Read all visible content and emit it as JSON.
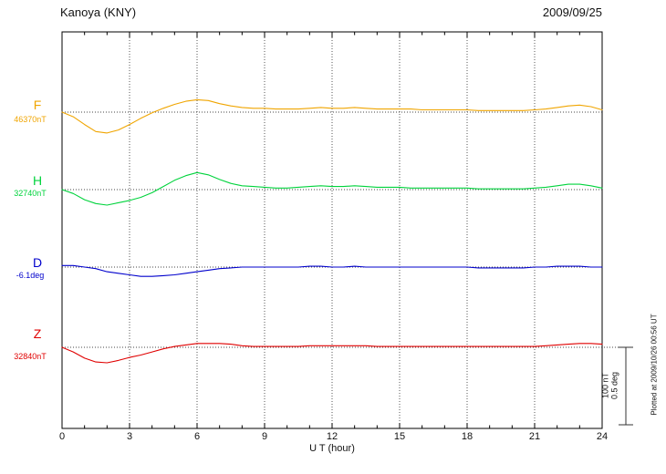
{
  "header": {
    "title": "Kanoya (KNY)",
    "date": "2009/09/25"
  },
  "axis": {
    "xlabel": "U T (hour)"
  },
  "scale_bar": {
    "label_nt": "100 nT",
    "label_deg": "0.5 deg"
  },
  "footer_note": "Plotted at 2009/10/26 00:56 UT",
  "chart_data": {
    "type": "line",
    "title": "Kanoya (KNY)",
    "subtitle": "2009/09/25",
    "xlabel": "U T (hour)",
    "xlim": [
      0,
      24
    ],
    "xticks": [
      0,
      3,
      6,
      9,
      12,
      15,
      18,
      21,
      24
    ],
    "grid": "dotted-vertical-every-3h-and-dotted-baseline-per-trace",
    "scale": {
      "nT_per_div": 100,
      "deg_per_div": 0.5
    },
    "x": [
      0,
      0.5,
      1,
      1.5,
      2,
      2.5,
      3,
      3.5,
      4,
      4.5,
      5,
      5.5,
      6,
      6.5,
      7,
      7.5,
      8,
      8.5,
      9,
      9.5,
      10,
      10.5,
      11,
      11.5,
      12,
      12.5,
      13,
      13.5,
      14,
      14.5,
      15,
      15.5,
      16,
      16.5,
      17,
      17.5,
      18,
      18.5,
      19,
      19.5,
      20,
      20.5,
      21,
      21.5,
      22,
      22.5,
      23,
      23.5,
      24
    ],
    "series": [
      {
        "name": "F",
        "unit": "nT",
        "baseline_label": "46370nT",
        "color": "#f0a500",
        "offsets": [
          0,
          -6,
          -16,
          -25,
          -27,
          -23,
          -16,
          -8,
          -1,
          5,
          10,
          14,
          16,
          15,
          11,
          8,
          6,
          5,
          5,
          4,
          4,
          4,
          5,
          6,
          5,
          5,
          6,
          5,
          4,
          4,
          4,
          4,
          3,
          3,
          3,
          3,
          3,
          2,
          2,
          2,
          2,
          2,
          3,
          4,
          6,
          8,
          9,
          7,
          3
        ]
      },
      {
        "name": "H",
        "unit": "nT",
        "baseline_label": "32740nT",
        "color": "#00d33c",
        "offsets": [
          0,
          -5,
          -13,
          -18,
          -20,
          -17,
          -14,
          -10,
          -4,
          4,
          12,
          18,
          22,
          19,
          13,
          8,
          5,
          4,
          3,
          2,
          2,
          3,
          4,
          5,
          4,
          4,
          5,
          4,
          3,
          3,
          3,
          2,
          2,
          2,
          2,
          2,
          2,
          1,
          1,
          1,
          1,
          1,
          2,
          3,
          5,
          7,
          7,
          5,
          2
        ]
      },
      {
        "name": "D",
        "unit": "deg",
        "baseline_label": "-6.1deg",
        "color": "#0000cc",
        "offsets": [
          0.01,
          0.01,
          0,
          -0.01,
          -0.03,
          -0.04,
          -0.05,
          -0.06,
          -0.06,
          -0.055,
          -0.05,
          -0.04,
          -0.03,
          -0.02,
          -0.01,
          -0.005,
          0,
          0,
          0,
          0,
          0,
          0,
          0.005,
          0.005,
          0,
          0,
          0.005,
          0,
          0,
          0,
          0,
          0,
          0,
          0,
          0,
          0,
          0,
          -0.005,
          -0.005,
          -0.005,
          -0.005,
          -0.005,
          0,
          0,
          0.005,
          0.005,
          0.005,
          0,
          0
        ]
      },
      {
        "name": "Z",
        "unit": "nT",
        "baseline_label": "32840nT",
        "color": "#e00000",
        "offsets": [
          0,
          -6,
          -14,
          -19,
          -20,
          -17,
          -13,
          -10,
          -6,
          -2,
          1,
          3,
          5,
          5,
          5,
          4,
          2,
          1,
          1,
          1,
          1,
          1,
          2,
          2,
          2,
          2,
          2,
          2,
          1,
          1,
          1,
          1,
          1,
          1,
          1,
          1,
          1,
          1,
          1,
          1,
          1,
          1,
          1,
          2,
          3,
          4,
          5,
          5,
          4
        ]
      }
    ]
  }
}
